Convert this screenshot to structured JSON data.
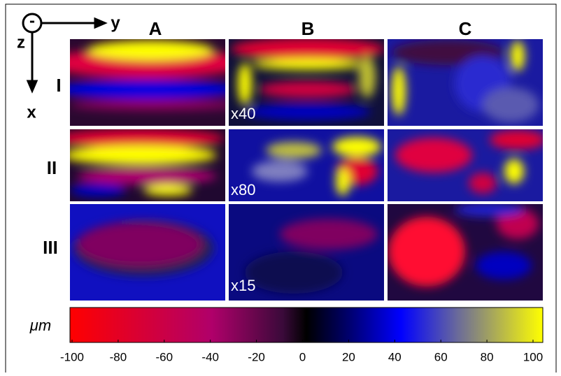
{
  "axes": {
    "out_of_plane": "-",
    "horizontal": "y",
    "depth": "z",
    "vertical": "x"
  },
  "columns": [
    "A",
    "B",
    "C"
  ],
  "rows": [
    "I",
    "II",
    "III"
  ],
  "multipliers": [
    "x40",
    "x80",
    "x15"
  ],
  "colorbar": {
    "label": "μm",
    "lim": [
      -100,
      100
    ],
    "ticks": [
      -100,
      -80,
      -60,
      -40,
      -20,
      0,
      20,
      40,
      60,
      80,
      100
    ]
  }
}
